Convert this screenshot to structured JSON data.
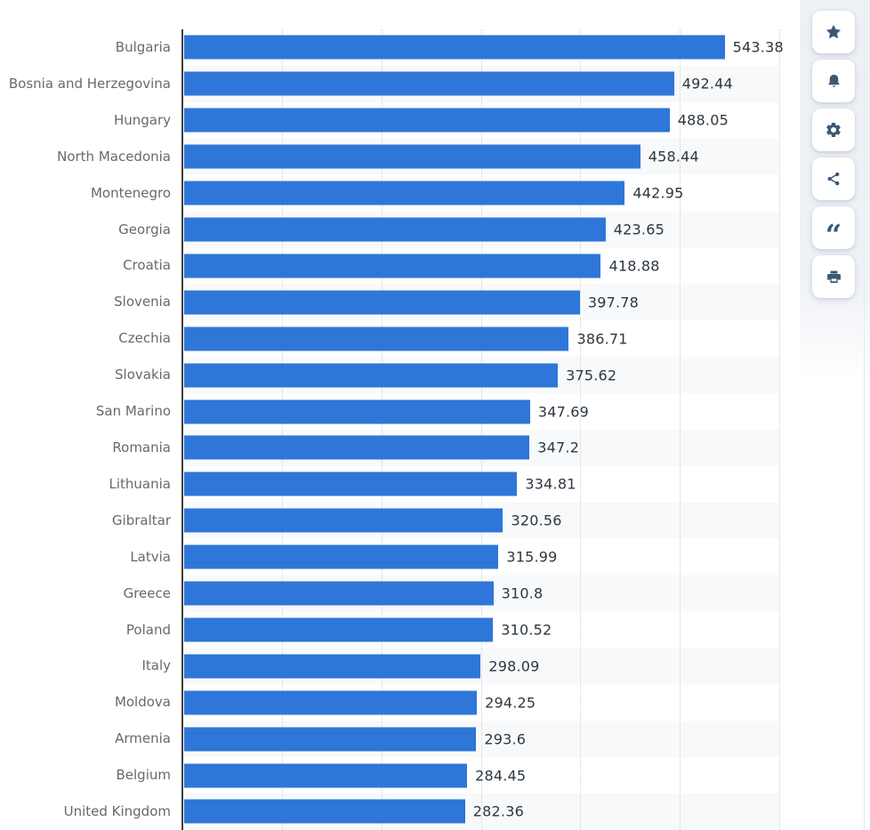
{
  "chart_data": {
    "type": "bar",
    "orientation": "horizontal",
    "title": "",
    "xlabel": "",
    "ylabel": "",
    "categories": [
      "Bulgaria",
      "Bosnia and Herzegovina",
      "Hungary",
      "North Macedonia",
      "Montenegro",
      "Georgia",
      "Croatia",
      "Slovenia",
      "Czechia",
      "Slovakia",
      "San Marino",
      "Romania",
      "Lithuania",
      "Gibraltar",
      "Latvia",
      "Greece",
      "Poland",
      "Italy",
      "Moldova",
      "Armenia",
      "Belgium",
      "United Kingdom"
    ],
    "values": [
      543.38,
      492.44,
      488.05,
      458.44,
      442.95,
      423.65,
      418.88,
      397.78,
      386.71,
      375.62,
      347.69,
      347.2,
      334.81,
      320.56,
      315.99,
      310.8,
      310.52,
      298.09,
      294.25,
      293.6,
      284.45,
      282.36
    ],
    "value_labels": [
      "543.38",
      "492.44",
      "488.05",
      "458.44",
      "442.95",
      "423.65",
      "418.88",
      "397.78",
      "386.71",
      "375.62",
      "347.69",
      "347.2",
      "334.81",
      "320.56",
      "315.99",
      "310.8",
      "310.52",
      "298.09",
      "294.25",
      "293.6",
      "284.45",
      "282.36"
    ],
    "xlim": [
      0,
      600
    ],
    "gridlines": [
      100,
      200,
      300,
      400,
      500,
      600
    ],
    "grid_style": "dotted-vertical",
    "legend": "none",
    "bar_color": "#2e76d8",
    "row_band_color": "#f8f9fa"
  },
  "sidebar": {
    "icon_color": "#3b5877",
    "buttons": [
      {
        "name": "favorite",
        "icon": "star-icon"
      },
      {
        "name": "notifications",
        "icon": "bell-icon"
      },
      {
        "name": "settings",
        "icon": "gear-icon"
      },
      {
        "name": "share",
        "icon": "share-icon"
      },
      {
        "name": "cite",
        "icon": "quote-icon",
        "glyph": "“"
      },
      {
        "name": "print",
        "icon": "printer-icon"
      }
    ]
  },
  "colors": {
    "bar": "#2e76d8",
    "row_band": "#f8f9fa",
    "axis_line": "#3e3e40",
    "gridline": "#d0d1d4",
    "category_label": "#68696b",
    "value_label": "#2c3741",
    "rail_background": "#edf0f5"
  }
}
